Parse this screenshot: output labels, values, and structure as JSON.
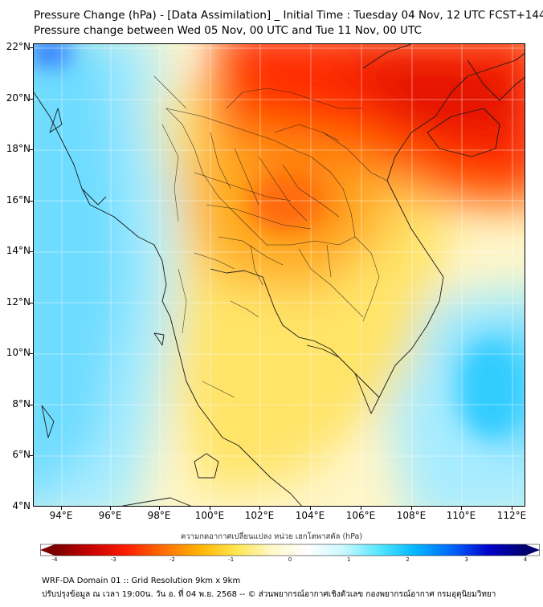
{
  "title_line1": "Pressure Change (hPa) - [Data Assimilation] _ Initial Time : Tuesday 04 Nov, 12 UTC FCST+144",
  "title_line2": "Pressure change between Wed 05 Nov, 00 UTC and Tue 11 Nov, 00 UTC",
  "lat_labels": [
    "22°N",
    "20°N",
    "18°N",
    "16°N",
    "14°N",
    "12°N",
    "10°N",
    "8°N",
    "6°N",
    "4°N"
  ],
  "lon_labels": [
    "94°E",
    "96°E",
    "98°E",
    "100°E",
    "102°E",
    "104°E",
    "106°E",
    "108°E",
    "110°E",
    "112°E"
  ],
  "colorbar": {
    "label": "ความกดอากาศเปลี่ยนแปลง หน่วย เฮกโตพาสคัล (hPa)",
    "min": -4,
    "max": 4,
    "ticks": [
      "-4",
      "-3",
      "-2",
      "-1",
      "0",
      "1",
      "2",
      "3",
      "4"
    ],
    "colors": [
      "#7a0000",
      "#c80000",
      "#ff1e00",
      "#ff6e00",
      "#ffb400",
      "#ffe650",
      "#fff8c8",
      "#ffffff",
      "#c8f8ff",
      "#50e6ff",
      "#00b4ff",
      "#0064ff",
      "#0000c8",
      "#00006e"
    ]
  },
  "footer_line1": "WRF-DA Domain 01 :: Grid Resolution 9km x 9km",
  "footer_line2": "ปรับปรุงข้อมูล ณ เวลา 19:00น. วัน อ. ที่ 04 พ.ย. 2568 -- © ส่วนพยากรณ์อากาศเชิงตัวเลข กองพยากรณ์อากาศ กรมอุตุนิยมวิทยา"
}
